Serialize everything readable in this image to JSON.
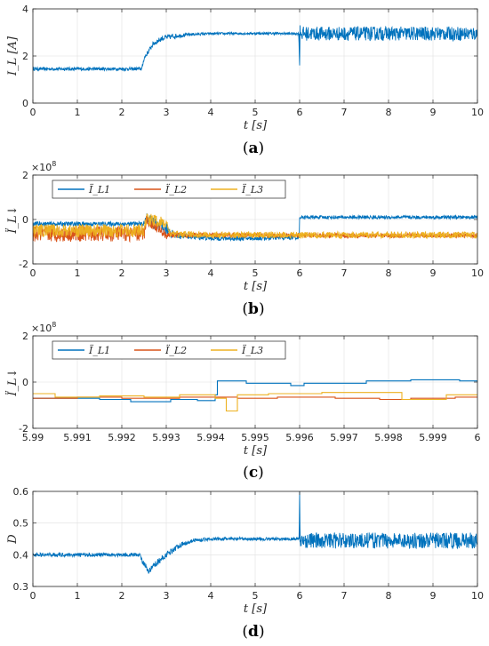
{
  "colors": {
    "blue": "#0072BD",
    "orange": "#D95319",
    "yellow": "#EDB120",
    "axis": "#262626"
  },
  "chart_data": [
    {
      "id": "a",
      "type": "line",
      "caption_open": "(",
      "caption_letter": "a",
      "caption_close": ")",
      "ylabel": "I_L [A]",
      "xlabel": "t [s]",
      "xlim": [
        0,
        10
      ],
      "ylim": [
        0,
        4
      ],
      "xticks": [
        0,
        1,
        2,
        3,
        4,
        5,
        6,
        7,
        8,
        9,
        10
      ],
      "yticks": [
        0,
        2,
        4
      ],
      "grid": true,
      "series": [
        {
          "color": "#0072BD",
          "x": [
            0,
            2.45,
            2.5,
            2.7,
            2.9,
            3.2,
            3.6,
            4.0,
            5.0,
            5.98,
            6.0,
            6.01,
            6.02,
            10
          ],
          "y": [
            1.45,
            1.45,
            1.9,
            2.5,
            2.75,
            2.85,
            2.92,
            2.95,
            2.96,
            2.95,
            1.6,
            3.3,
            2.95,
            2.95
          ],
          "noise": [
            0.07,
            0.07,
            0.1,
            0.1,
            0.12,
            0.1,
            0.06,
            0.05,
            0.05,
            0.05,
            0,
            0,
            0.3,
            0.3
          ]
        }
      ]
    },
    {
      "id": "b",
      "type": "line",
      "caption_open": "(",
      "caption_letter": "b",
      "caption_close": ")",
      "ylabel": "Ï_L↓",
      "xlabel": "t [s]",
      "exponent_label": "×10",
      "exponent_power": "8",
      "xlim": [
        0,
        10
      ],
      "ylim": [
        -2,
        2
      ],
      "xticks": [
        0,
        1,
        2,
        3,
        4,
        5,
        6,
        7,
        8,
        9,
        10
      ],
      "yticks": [
        -2,
        0,
        2
      ],
      "grid": true,
      "legend": [
        "Ï_L1",
        "Ï_L2",
        "Ï_L3"
      ],
      "legend_placement": "top-left",
      "series": [
        {
          "name": "Ï_L1",
          "color": "#0072BD",
          "x": [
            0,
            2.5,
            2.55,
            2.8,
            3.05,
            3.2,
            4.0,
            5.0,
            5.99,
            6.0,
            10
          ],
          "y": [
            -0.2,
            -0.2,
            0.1,
            -0.3,
            -0.5,
            -0.7,
            -0.85,
            -0.85,
            -0.8,
            0.1,
            0.1
          ],
          "noise": [
            0.1,
            0.1,
            0.2,
            0.3,
            0.3,
            0.15,
            0.1,
            0.1,
            0.1,
            0.08,
            0.08
          ]
        },
        {
          "name": "Ï_L2",
          "color": "#D95319",
          "x": [
            0,
            2.5,
            2.55,
            3.0,
            3.1,
            4.0,
            6.0,
            10
          ],
          "y": [
            -0.65,
            -0.65,
            0.0,
            -0.7,
            -0.7,
            -0.7,
            -0.72,
            -0.72
          ],
          "noise": [
            0.35,
            0.35,
            0.25,
            0.2,
            0.12,
            0.1,
            0.1,
            0.1
          ]
        },
        {
          "name": "Ï_L3",
          "color": "#EDB120",
          "x": [
            0,
            2.5,
            2.55,
            3.0,
            3.1,
            4.0,
            6.0,
            10
          ],
          "y": [
            -0.5,
            -0.5,
            0.05,
            -0.2,
            -0.65,
            -0.7,
            -0.7,
            -0.7
          ],
          "noise": [
            0.3,
            0.3,
            0.3,
            0.25,
            0.15,
            0.15,
            0.15,
            0.15
          ]
        }
      ]
    },
    {
      "id": "c",
      "type": "line",
      "caption_open": "(",
      "caption_letter": "c",
      "caption_close": ")",
      "ylabel": "Ï_L↓",
      "xlabel": "t [s]",
      "exponent_label": "×10",
      "exponent_power": "8",
      "xlim": [
        5.99,
        6
      ],
      "ylim": [
        -2,
        2
      ],
      "xticks": [
        5.99,
        5.991,
        5.992,
        5.993,
        5.994,
        5.995,
        5.996,
        5.997,
        5.998,
        5.999,
        6
      ],
      "xticklabels": [
        "5.99",
        "5.991",
        "5.992",
        "5.993",
        "5.994",
        "5.995",
        "5.996",
        "5.997",
        "5.998",
        "5.999",
        "6"
      ],
      "yticks": [
        -2,
        0,
        2
      ],
      "grid": true,
      "legend": [
        "Ï_L1",
        "Ï_L2",
        "Ï_L3"
      ],
      "legend_placement": "top-left",
      "series": [
        {
          "name": "Ï_L1",
          "color": "#0072BD",
          "step": true,
          "x": [
            5.99,
            5.9915,
            5.9922,
            5.9931,
            5.9937,
            5.9941,
            5.99415,
            5.9948,
            5.9958,
            5.9961,
            5.9975,
            5.9985,
            5.9996,
            6.0
          ],
          "y": [
            -0.7,
            -0.75,
            -0.85,
            -0.75,
            -0.8,
            -0.55,
            0.05,
            -0.05,
            -0.15,
            -0.05,
            0.05,
            0.1,
            0.05,
            0.0
          ]
        },
        {
          "name": "Ï_L2",
          "color": "#D95319",
          "step": true,
          "x": [
            5.99,
            5.991,
            5.992,
            5.9933,
            5.9941,
            5.9946,
            5.9955,
            5.9968,
            5.9978,
            5.9985,
            5.9995,
            6.0
          ],
          "y": [
            -0.7,
            -0.65,
            -0.7,
            -0.65,
            -0.65,
            -0.7,
            -0.65,
            -0.7,
            -0.75,
            -0.7,
            -0.65,
            -0.65
          ]
        },
        {
          "name": "Ï_L3",
          "color": "#EDB120",
          "step": true,
          "x": [
            5.99,
            5.9905,
            5.9915,
            5.9925,
            5.9933,
            5.9941,
            5.99435,
            5.9946,
            5.9953,
            5.9965,
            5.9977,
            5.9983,
            5.9993,
            6.0
          ],
          "y": [
            -0.5,
            -0.65,
            -0.6,
            -0.65,
            -0.55,
            -0.7,
            -1.25,
            -0.55,
            -0.5,
            -0.45,
            -0.45,
            -0.75,
            -0.55,
            -0.55
          ]
        }
      ]
    },
    {
      "id": "d",
      "type": "line",
      "caption_open": "(",
      "caption_letter": "d",
      "caption_close": ")",
      "ylabel": "D",
      "xlabel": "t [s]",
      "xlim": [
        0,
        10
      ],
      "ylim": [
        0.3,
        0.6
      ],
      "xticks": [
        0,
        1,
        2,
        3,
        4,
        5,
        6,
        7,
        8,
        9,
        10
      ],
      "yticks": [
        0.3,
        0.4,
        0.5,
        0.6
      ],
      "yticklabels": [
        "0.3",
        "0.4",
        "0.5",
        "0.6"
      ],
      "grid": true,
      "series": [
        {
          "color": "#0072BD",
          "x": [
            0,
            2.4,
            2.5,
            2.6,
            2.75,
            3.0,
            3.3,
            3.6,
            4.0,
            5.0,
            5.99,
            6.0,
            6.01,
            6.02,
            10
          ],
          "y": [
            0.4,
            0.4,
            0.37,
            0.345,
            0.37,
            0.4,
            0.43,
            0.445,
            0.45,
            0.45,
            0.45,
            0.6,
            0.44,
            0.445,
            0.445
          ],
          "noise": [
            0.006,
            0.006,
            0.01,
            0.01,
            0.01,
            0.01,
            0.008,
            0.006,
            0.005,
            0.005,
            0.005,
            0,
            0,
            0.025,
            0.025
          ]
        }
      ]
    }
  ]
}
